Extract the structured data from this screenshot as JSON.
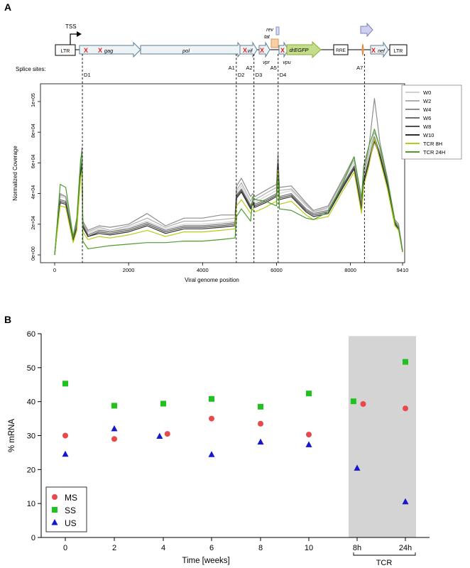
{
  "panel_a": {
    "label": "A",
    "genome": {
      "tss": "TSS",
      "genes": [
        "LTR",
        "gag",
        "pol",
        "vif",
        "vpr",
        "tat",
        "rev",
        "vpu",
        "drEGFP",
        "RRE",
        "nef",
        "LTR"
      ],
      "splice_label": "Splice sites:",
      "splice_sites": [
        {
          "donor": "D1",
          "acceptor": "",
          "pos": 750
        },
        {
          "donor": "D2",
          "acceptor": "A1",
          "pos": 4913
        },
        {
          "donor": "D3",
          "acceptor": "A2",
          "pos": 5390
        },
        {
          "donor": "D4",
          "acceptor": "A5",
          "pos": 6045
        },
        {
          "donor": "",
          "acceptor": "A7",
          "pos": 8380
        }
      ]
    }
  },
  "panel_b": {
    "label": "B"
  },
  "chart_data": [
    {
      "type": "line",
      "title": "",
      "xlabel": "Viral genome position",
      "ylabel": "Normalized Coverage",
      "xlim": [
        0,
        9410
      ],
      "ylim": [
        0,
        110000
      ],
      "x_ticks": [
        0,
        2000,
        4000,
        6000,
        8000,
        9410
      ],
      "x_tick_labels": [
        "0",
        "2000",
        "4000",
        "6000",
        "8000",
        "9410"
      ],
      "y_ticks": [
        0,
        20000,
        40000,
        60000,
        80000,
        100000
      ],
      "y_tick_labels": [
        "0e+00",
        "2e+04",
        "4e+04",
        "6e+04",
        "8e+04",
        "1e+05"
      ],
      "legend": "top-right",
      "x": [
        0,
        150,
        300,
        500,
        600,
        700,
        740,
        760,
        900,
        1200,
        1500,
        2000,
        2500,
        3000,
        3500,
        4000,
        4500,
        4880,
        4920,
        5050,
        5300,
        5360,
        5420,
        5700,
        6000,
        6040,
        6080,
        6400,
        6800,
        7000,
        7400,
        7800,
        8100,
        8300,
        8360,
        8500,
        8650,
        8800,
        9000,
        9200,
        9300,
        9410
      ],
      "series": [
        {
          "name": "W0",
          "color": "#d0d0d0",
          "values": [
            0,
            38000,
            37000,
            10000,
            20000,
            57000,
            60000,
            21000,
            14000,
            17000,
            15000,
            18000,
            22000,
            17000,
            20000,
            20000,
            21000,
            22000,
            40000,
            45000,
            33000,
            36000,
            34000,
            38000,
            42000,
            62000,
            40000,
            42000,
            32000,
            28000,
            30000,
            48000,
            60000,
            32000,
            50000,
            63000,
            74000,
            68000,
            48000,
            22000,
            19000,
            3000
          ]
        },
        {
          "name": "W2",
          "color": "#b0b0b0",
          "values": [
            0,
            39000,
            38000,
            11000,
            21000,
            58000,
            62000,
            22000,
            15000,
            18000,
            16000,
            19000,
            24000,
            18000,
            22000,
            22000,
            23000,
            24000,
            42000,
            47000,
            35000,
            38000,
            36000,
            40000,
            44000,
            63000,
            42000,
            43000,
            33000,
            28000,
            31000,
            49000,
            62000,
            33000,
            52000,
            66000,
            80000,
            70000,
            49000,
            23000,
            20000,
            3000
          ]
        },
        {
          "name": "W4",
          "color": "#8e8e8e",
          "values": [
            0,
            40000,
            38000,
            11000,
            22000,
            60000,
            70000,
            22000,
            16000,
            19000,
            18000,
            20000,
            27000,
            19000,
            24000,
            24000,
            26000,
            26000,
            45000,
            50000,
            38000,
            40000,
            38000,
            42000,
            46000,
            66000,
            44000,
            45000,
            34000,
            29000,
            32000,
            50000,
            64000,
            33000,
            54000,
            70000,
            102000,
            73000,
            50000,
            23000,
            20000,
            3000
          ]
        },
        {
          "name": "W6",
          "color": "#707070",
          "values": [
            0,
            36000,
            35000,
            10000,
            19000,
            55000,
            62000,
            20000,
            13000,
            16000,
            15000,
            17000,
            21000,
            16000,
            19000,
            19000,
            20000,
            21000,
            39000,
            43000,
            32000,
            35000,
            33000,
            36000,
            40000,
            60000,
            38000,
            40000,
            30000,
            27000,
            29000,
            46000,
            58000,
            31000,
            49000,
            62000,
            77000,
            66000,
            47000,
            21000,
            18000,
            2000
          ]
        },
        {
          "name": "W8",
          "color": "#505050",
          "values": [
            0,
            35000,
            34000,
            9000,
            18000,
            54000,
            60000,
            19000,
            12000,
            15000,
            14000,
            16000,
            20000,
            15000,
            18000,
            18000,
            19000,
            20000,
            38000,
            42000,
            31000,
            34000,
            32000,
            35000,
            39000,
            59000,
            37000,
            39000,
            29000,
            26000,
            28000,
            45000,
            57000,
            30000,
            48000,
            61000,
            75000,
            65000,
            46000,
            21000,
            18000,
            2000
          ]
        },
        {
          "name": "W10",
          "color": "#2e2e2e",
          "values": [
            0,
            34000,
            33000,
            9000,
            18000,
            53000,
            58000,
            18000,
            12000,
            14000,
            13000,
            15000,
            19000,
            14000,
            17000,
            17000,
            18000,
            19000,
            37000,
            41000,
            30000,
            33000,
            31000,
            34000,
            38000,
            58000,
            36000,
            38000,
            28000,
            25000,
            27000,
            44000,
            56000,
            29000,
            47000,
            60000,
            74000,
            64000,
            45000,
            20000,
            17000,
            2000
          ]
        },
        {
          "name": "TCR 8H",
          "color": "#b5cc18",
          "values": [
            0,
            32000,
            31000,
            8000,
            16000,
            50000,
            55000,
            15000,
            10000,
            12000,
            11000,
            13000,
            16000,
            12000,
            15000,
            15000,
            16000,
            17000,
            32000,
            36000,
            27000,
            30000,
            28000,
            31000,
            35000,
            55000,
            33000,
            35000,
            26000,
            23000,
            25000,
            42000,
            54000,
            27000,
            45000,
            58000,
            76000,
            62000,
            43000,
            19000,
            16000,
            2000
          ]
        },
        {
          "name": "TCR 24H",
          "color": "#4a9e2e",
          "values": [
            0,
            46000,
            44000,
            12000,
            24000,
            62000,
            67000,
            9000,
            4000,
            5000,
            6000,
            7000,
            8000,
            8000,
            9000,
            9000,
            10000,
            11000,
            25000,
            30000,
            22000,
            38000,
            36000,
            35000,
            32000,
            52000,
            30000,
            29000,
            24000,
            23000,
            28000,
            47000,
            64000,
            37000,
            58000,
            71000,
            82000,
            70000,
            49000,
            22000,
            18000,
            2000
          ]
        }
      ]
    },
    {
      "type": "scatter",
      "title": "",
      "xlabel": "Time [weeks]",
      "ylabel": "% mRNA",
      "ylim": [
        0,
        60
      ],
      "y_ticks": [
        0,
        10,
        20,
        30,
        40,
        50,
        60
      ],
      "categories": [
        "0",
        "2",
        "4",
        "6",
        "8",
        "10",
        "8h",
        "24h"
      ],
      "group_label": "TCR",
      "shaded_categories": [
        "8h",
        "24h"
      ],
      "legend": "bottom-left",
      "series": [
        {
          "name": "MS",
          "marker": "circle",
          "color": "#e8494a",
          "x": [
            0,
            2,
            4.17,
            6,
            8,
            10,
            12.25,
            14
          ],
          "values": [
            30,
            29,
            30.5,
            35,
            33.5,
            30.3,
            39.3,
            38
          ]
        },
        {
          "name": "SS",
          "marker": "square",
          "color": "#1fc21f",
          "x": [
            0,
            2,
            4,
            6,
            8,
            10,
            11.85,
            14
          ],
          "values": [
            45.3,
            38.8,
            39.4,
            40.8,
            38.5,
            42.4,
            40.1,
            51.7
          ]
        },
        {
          "name": "US",
          "marker": "triangle",
          "color": "#1616cc",
          "x": [
            0,
            2,
            3.85,
            6,
            8,
            10,
            12.0,
            14
          ],
          "values": [
            24.5,
            32,
            29.8,
            24.4,
            28.1,
            27.3,
            20.4,
            10.5
          ]
        }
      ]
    }
  ]
}
